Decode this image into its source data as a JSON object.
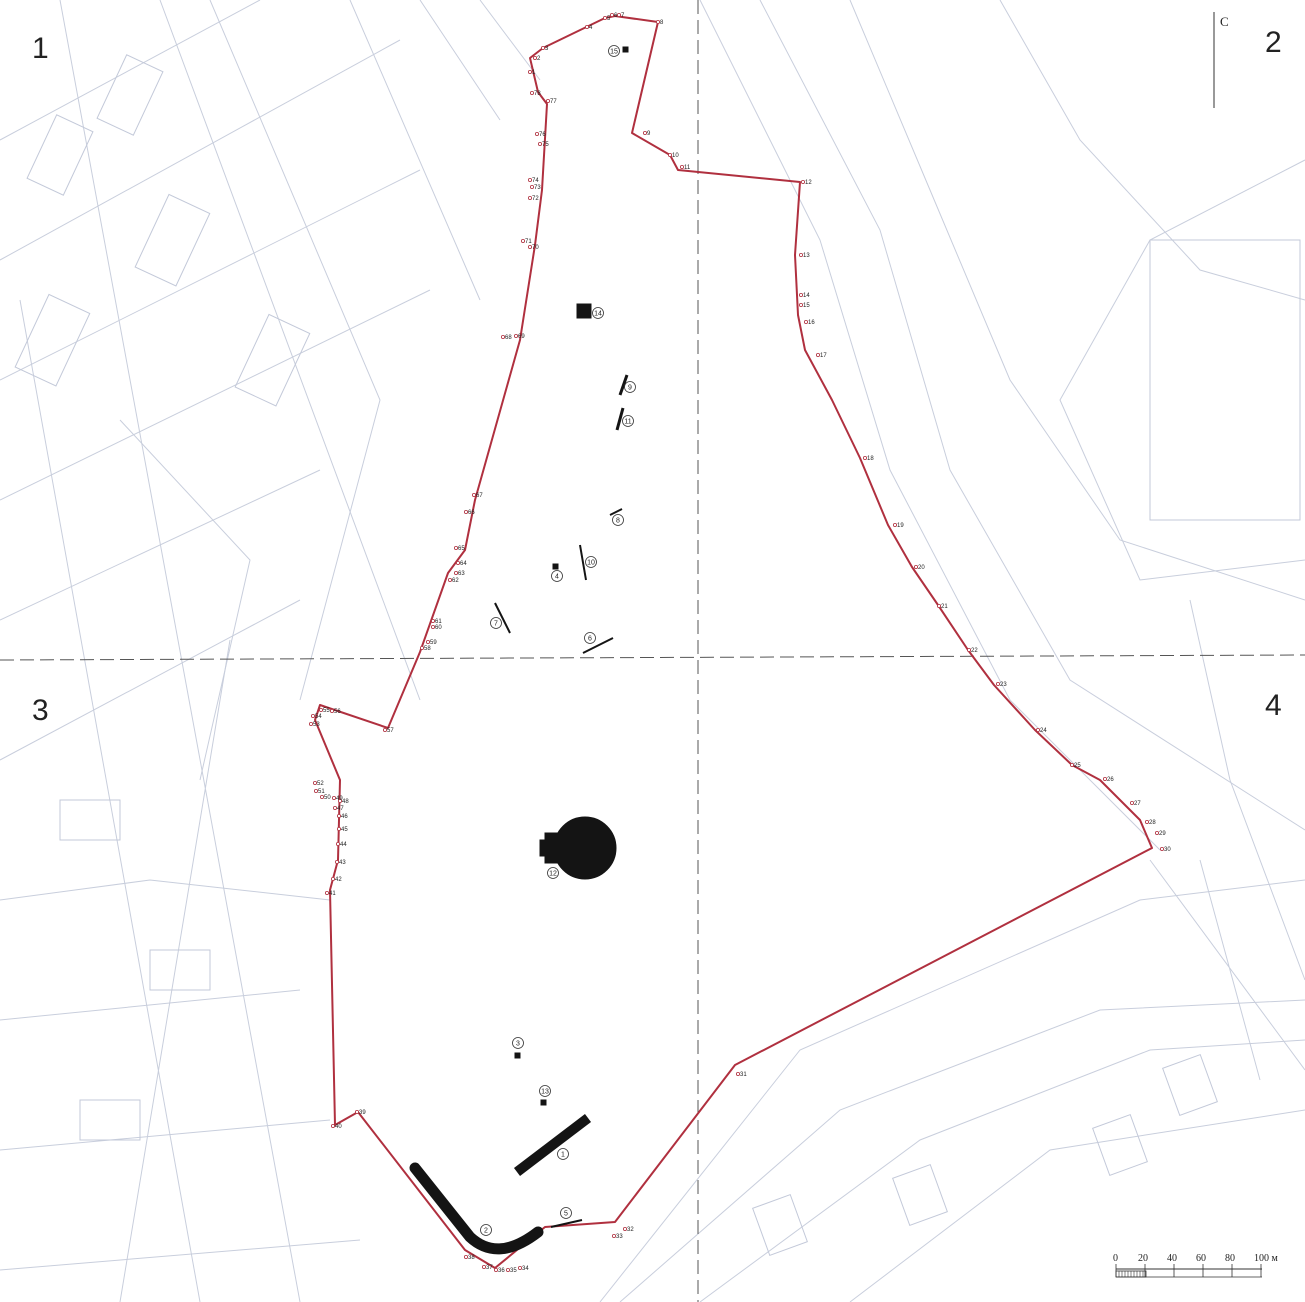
{
  "sheet_numbers": [
    "1",
    "2",
    "3",
    "4"
  ],
  "north_arrow": {
    "letter": "С"
  },
  "scale_bar": {
    "ticks": [
      "0",
      "20",
      "40",
      "60",
      "80",
      "100 м"
    ]
  },
  "colors": {
    "boundary": "#b0303f",
    "object": "#141414",
    "grid_divider": "#555555",
    "background_map": "#c3c9d9"
  },
  "boundary_vertex_labels": [
    "1",
    "2",
    "3",
    "4",
    "5",
    "6",
    "7",
    "8",
    "9",
    "10",
    "11",
    "12",
    "13",
    "14",
    "15",
    "16",
    "17",
    "18",
    "19",
    "20",
    "21",
    "22",
    "23",
    "24",
    "25",
    "26",
    "27",
    "28",
    "29",
    "30",
    "31",
    "32",
    "33",
    "34",
    "35",
    "36",
    "37",
    "38",
    "39",
    "40",
    "41",
    "42",
    "43",
    "44",
    "45",
    "46",
    "47",
    "48",
    "49",
    "50",
    "51",
    "52",
    "53",
    "54",
    "55",
    "56",
    "57",
    "58",
    "59",
    "60",
    "61",
    "62",
    "63",
    "64",
    "65",
    "66",
    "67",
    "68",
    "69",
    "70",
    "71",
    "72",
    "73",
    "74",
    "75",
    "76",
    "77",
    "78"
  ],
  "object_labels": [
    "1",
    "2",
    "3",
    "4",
    "5",
    "6",
    "7",
    "8",
    "9",
    "10",
    "11",
    "12",
    "13",
    "14",
    "15"
  ]
}
